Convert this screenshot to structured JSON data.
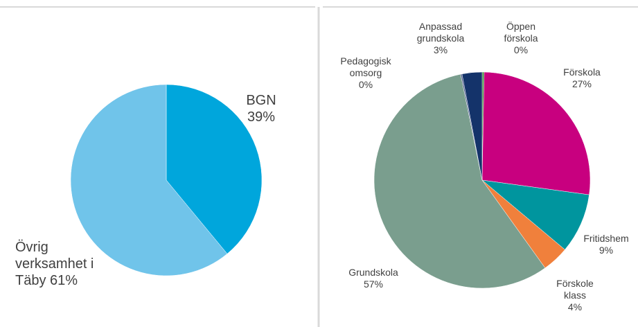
{
  "chart_data": [
    {
      "type": "pie",
      "categories": [
        "BGN",
        "Övrig verksamhet i Täby"
      ],
      "values": [
        39,
        61
      ],
      "value_labels": [
        "39%",
        "61%"
      ],
      "colors": [
        "#00a6dc",
        "#70c4ea"
      ]
    },
    {
      "type": "pie",
      "categories": [
        "Öppen förskola",
        "Förskola",
        "Fritidshem",
        "Förskole klass",
        "Grundskola",
        "Pedagogisk omsorg",
        "Anpassad grundskola"
      ],
      "values": [
        0.3,
        27,
        9,
        4,
        57,
        0.2,
        3
      ],
      "value_labels": [
        "0%",
        "27%",
        "9%",
        "4%",
        "57%",
        "0%",
        "3%"
      ],
      "colors": [
        "#3a8a3a",
        "#c8007f",
        "#00959e",
        "#f0803c",
        "#7a9e8e",
        "#4b5a8a",
        "#14336a"
      ]
    }
  ]
}
